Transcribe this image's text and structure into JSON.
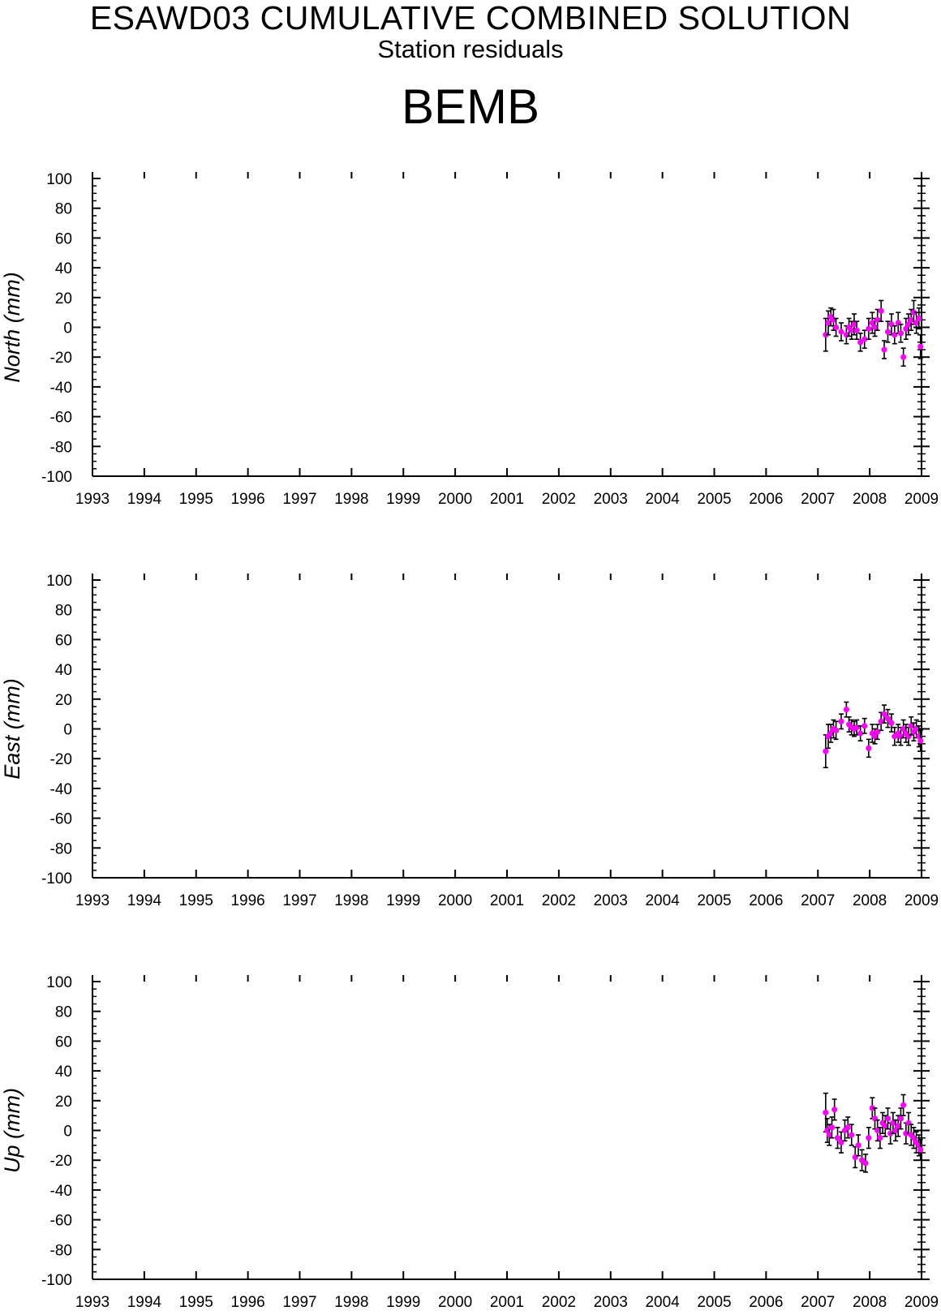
{
  "header": {
    "title": "ESAWD03 CUMULATIVE COMBINED SOLUTION",
    "subtitle": "Station residuals",
    "station": "BEMB"
  },
  "style": {
    "marker_color": "#ff00ff",
    "errorbar_color": "#000000",
    "axis_color": "#000000"
  },
  "chart_data": [
    {
      "type": "scatter",
      "ylabel": "North (mm)",
      "xlim": [
        1993,
        2009
      ],
      "ylim": [
        -100,
        100
      ],
      "xticks": [
        "1993",
        "1994",
        "1995",
        "1996",
        "1997",
        "1998",
        "1999",
        "2000",
        "2001",
        "2002",
        "2003",
        "2004",
        "2005",
        "2006",
        "2007",
        "2008",
        "2009"
      ],
      "yticks": [
        "100",
        "80",
        "60",
        "40",
        "20",
        "0",
        "-20",
        "-40",
        "-60",
        "-80",
        "-100"
      ],
      "grid": false,
      "series": [
        {
          "x": [
            2007.15,
            2007.2,
            2007.25,
            2007.3,
            2007.35,
            2007.45,
            2007.55,
            2007.6,
            2007.65,
            2007.7,
            2007.75,
            2007.82,
            2007.9,
            2007.98,
            2008.05,
            2008.1,
            2008.15,
            2008.22,
            2008.28,
            2008.35,
            2008.42,
            2008.48,
            2008.55,
            2008.6,
            2008.65,
            2008.7,
            2008.75,
            2008.8,
            2008.85,
            2008.9,
            2008.95,
            2008.98
          ],
          "y": [
            -5,
            3,
            7,
            5,
            0,
            -3,
            -5,
            0,
            -2,
            2,
            -2,
            -10,
            -8,
            -1,
            3,
            0,
            5,
            11,
            -15,
            -3,
            2,
            -5,
            3,
            -4,
            -20,
            -1,
            2,
            5,
            10,
            3,
            6,
            -13
          ],
          "err": [
            11,
            8,
            6,
            7,
            6,
            6,
            6,
            6,
            6,
            7,
            6,
            6,
            6,
            7,
            7,
            6,
            7,
            7,
            6,
            7,
            7,
            6,
            7,
            6,
            6,
            7,
            7,
            7,
            8,
            7,
            7,
            8
          ]
        }
      ]
    },
    {
      "type": "scatter",
      "ylabel": "East (mm)",
      "xlim": [
        1993,
        2009
      ],
      "ylim": [
        -100,
        100
      ],
      "xticks": [
        "1993",
        "1994",
        "1995",
        "1996",
        "1997",
        "1998",
        "1999",
        "2000",
        "2001",
        "2002",
        "2003",
        "2004",
        "2005",
        "2006",
        "2007",
        "2008",
        "2009"
      ],
      "yticks": [
        "100",
        "80",
        "60",
        "40",
        "20",
        "0",
        "-20",
        "-40",
        "-60",
        "-80",
        "-100"
      ],
      "grid": false,
      "series": [
        {
          "x": [
            2007.15,
            2007.2,
            2007.25,
            2007.3,
            2007.35,
            2007.45,
            2007.55,
            2007.6,
            2007.65,
            2007.7,
            2007.75,
            2007.82,
            2007.9,
            2007.98,
            2008.05,
            2008.1,
            2008.15,
            2008.22,
            2008.28,
            2008.35,
            2008.42,
            2008.48,
            2008.55,
            2008.6,
            2008.65,
            2008.7,
            2008.75,
            2008.8,
            2008.85,
            2008.9,
            2008.95,
            2008.98
          ],
          "y": [
            -15,
            -5,
            -3,
            0,
            -1,
            5,
            13,
            3,
            1,
            0,
            1,
            -3,
            2,
            -13,
            -3,
            -5,
            -2,
            5,
            10,
            7,
            4,
            -5,
            -3,
            -5,
            0,
            -3,
            -5,
            2,
            -2,
            0,
            -5,
            -8
          ],
          "err": [
            11,
            8,
            6,
            6,
            6,
            5,
            5,
            5,
            5,
            5,
            5,
            5,
            5,
            6,
            6,
            5,
            5,
            6,
            6,
            6,
            6,
            6,
            6,
            6,
            6,
            6,
            6,
            6,
            6,
            6,
            7,
            7
          ]
        }
      ]
    },
    {
      "type": "scatter",
      "ylabel": "Up (mm)",
      "xlim": [
        1993,
        2009
      ],
      "ylim": [
        -100,
        100
      ],
      "xticks": [
        "1993",
        "1994",
        "1995",
        "1996",
        "1997",
        "1998",
        "1999",
        "2000",
        "2001",
        "2002",
        "2003",
        "2004",
        "2005",
        "2006",
        "2007",
        "2008",
        "2009"
      ],
      "yticks": [
        "100",
        "80",
        "60",
        "40",
        "20",
        "0",
        "-20",
        "-40",
        "-60",
        "-80",
        "-100"
      ],
      "grid": false,
      "series": [
        {
          "x": [
            2007.15,
            2007.18,
            2007.22,
            2007.27,
            2007.32,
            2007.38,
            2007.45,
            2007.52,
            2007.58,
            2007.65,
            2007.72,
            2007.78,
            2007.85,
            2007.92,
            2007.98,
            2008.05,
            2008.1,
            2008.15,
            2008.2,
            2008.25,
            2008.3,
            2008.35,
            2008.4,
            2008.45,
            2008.5,
            2008.55,
            2008.6,
            2008.65,
            2008.7,
            2008.75,
            2008.8,
            2008.85,
            2008.9,
            2008.95,
            2008.98
          ],
          "y": [
            12,
            0,
            -3,
            2,
            14,
            -5,
            -8,
            0,
            2,
            -3,
            -18,
            -10,
            -20,
            -22,
            -5,
            15,
            8,
            0,
            -5,
            5,
            3,
            8,
            -2,
            5,
            0,
            3,
            8,
            17,
            -2,
            5,
            -3,
            -5,
            -8,
            -10,
            -13
          ],
          "err": [
            13,
            8,
            7,
            7,
            7,
            7,
            7,
            7,
            7,
            7,
            7,
            7,
            7,
            6,
            7,
            7,
            7,
            7,
            7,
            7,
            7,
            7,
            7,
            7,
            7,
            7,
            7,
            7,
            7,
            7,
            7,
            7,
            7,
            7,
            7
          ]
        }
      ]
    }
  ]
}
